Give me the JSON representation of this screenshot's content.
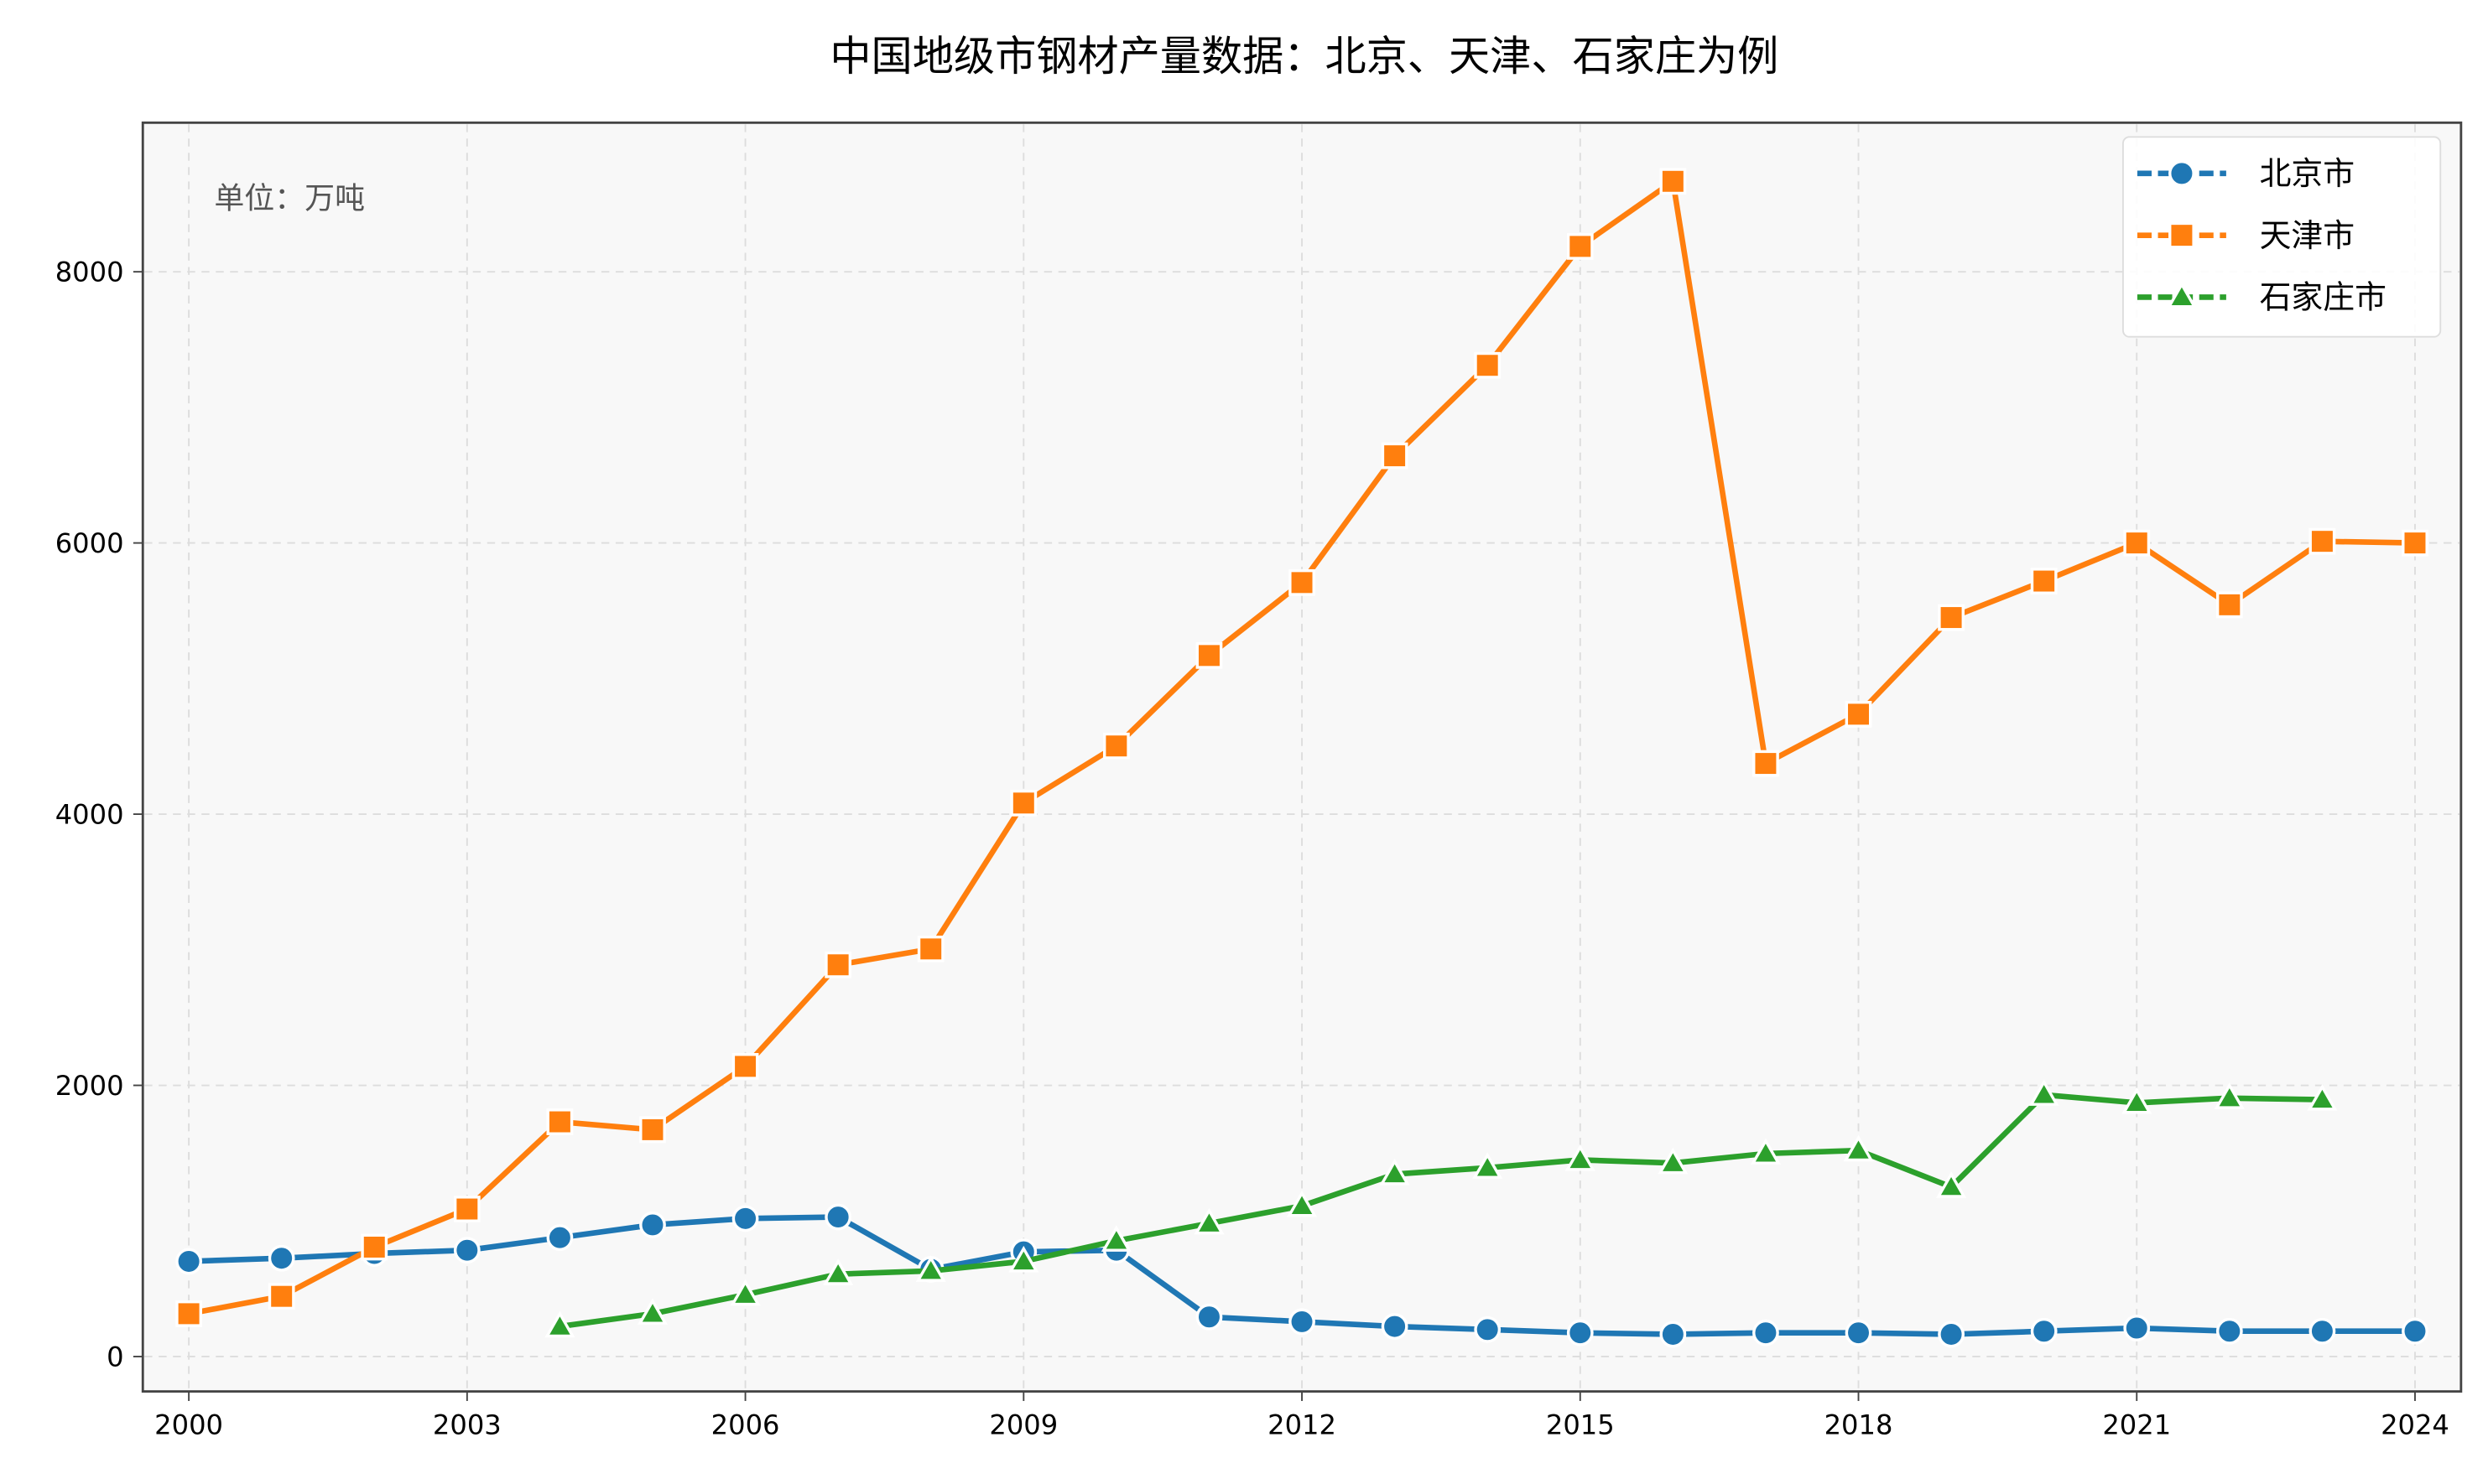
{
  "chart_data": {
    "type": "line",
    "title": "中国地级市钢材产量数据：北京、天津、石家庄为例",
    "annotation": "单位：万吨",
    "xlabel": "",
    "ylabel": "",
    "xlim": [
      1999.5,
      2024.5
    ],
    "ylim": [
      -250,
      9100
    ],
    "xticks": [
      2000,
      2003,
      2006,
      2009,
      2012,
      2015,
      2018,
      2021,
      2024
    ],
    "yticks": [
      0,
      2000,
      4000,
      6000,
      8000
    ],
    "grid": true,
    "legend_position": "top-right",
    "series": [
      {
        "name": "北京市",
        "color": "#1f77b4",
        "marker": "circle",
        "x": [
          2000,
          2001,
          2002,
          2003,
          2004,
          2005,
          2006,
          2007,
          2008,
          2009,
          2010,
          2011,
          2012,
          2013,
          2014,
          2015,
          2016,
          2017,
          2018,
          2019,
          2020,
          2021,
          2022,
          2023,
          2024
        ],
        "values": [
          702,
          725,
          760,
          784,
          877,
          971,
          1018,
          1029,
          643,
          772,
          784,
          292,
          257,
          222,
          199,
          175,
          164,
          175,
          175,
          164,
          187,
          210,
          187,
          187,
          187
        ]
      },
      {
        "name": "天津市",
        "color": "#ff7f0e",
        "marker": "square",
        "x": [
          2000,
          2001,
          2002,
          2003,
          2004,
          2005,
          2006,
          2007,
          2008,
          2009,
          2010,
          2011,
          2012,
          2013,
          2014,
          2015,
          2016,
          2017,
          2018,
          2019,
          2020,
          2021,
          2022,
          2023,
          2024
        ],
        "values": [
          316,
          444,
          807,
          1088,
          1731,
          1673,
          2140,
          2889,
          3006,
          4082,
          4503,
          5170,
          5708,
          6643,
          7310,
          8187,
          8667,
          4374,
          4737,
          5450,
          5719,
          6000,
          5544,
          6012,
          6000
        ]
      },
      {
        "name": "石家庄市",
        "color": "#2ca02c",
        "marker": "triangle",
        "x": [
          2004,
          2005,
          2006,
          2007,
          2008,
          2009,
          2010,
          2011,
          2012,
          2013,
          2014,
          2015,
          2016,
          2017,
          2018,
          2019,
          2020,
          2021,
          2022,
          2023
        ],
        "values": [
          222,
          316,
          456,
          608,
          632,
          702,
          854,
          982,
          1111,
          1345,
          1392,
          1450,
          1427,
          1497,
          1520,
          1251,
          1930,
          1871,
          1906,
          1895
        ]
      }
    ]
  }
}
